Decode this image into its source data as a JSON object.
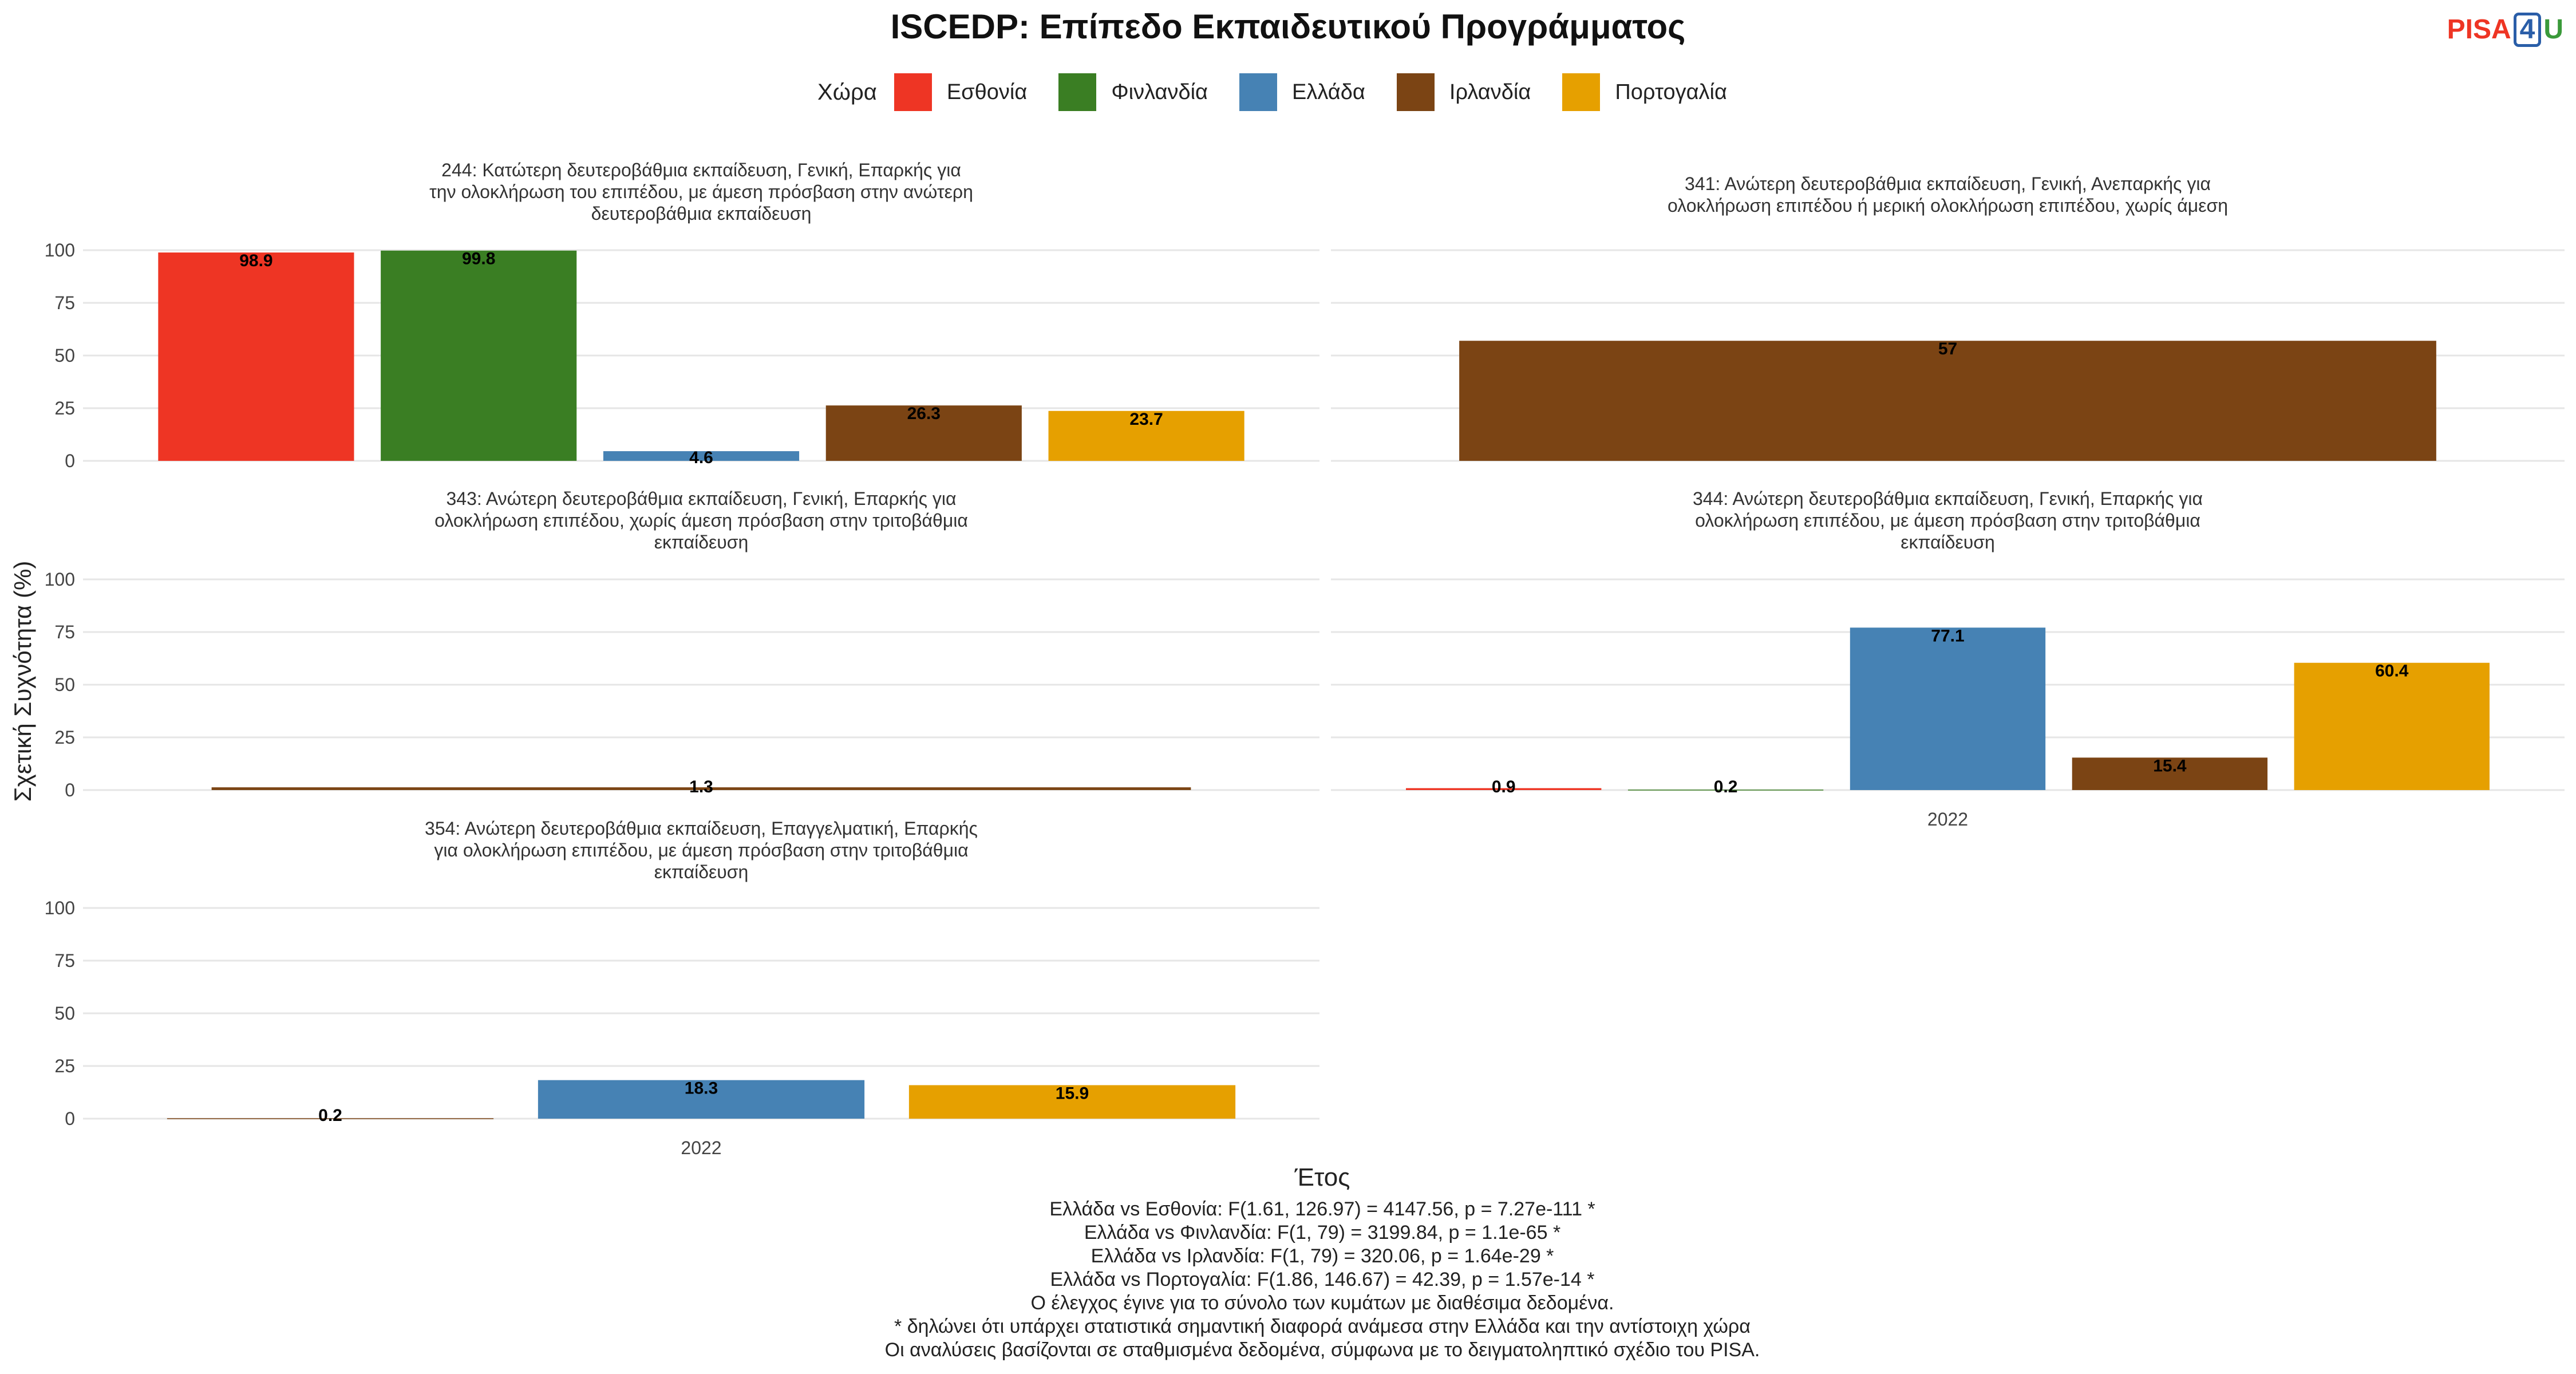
{
  "title": "ISCEDP: Επίπεδο Εκπαιδευτικού Προγράμματος",
  "logo": {
    "part1": "PISA",
    "part2": "4",
    "part3": "U"
  },
  "chart_data": {
    "type": "bar",
    "title": "ISCEDP: Επίπεδο Εκπαιδευτικού Προγράμματος",
    "xlabel": "Έτος",
    "ylabel": "Σχετική Συχνότητα (%)",
    "ylim": [
      0,
      100
    ],
    "yticks": [
      "0",
      "25",
      "50",
      "75",
      "100"
    ],
    "legend_title": "Χώρα",
    "legend_position": "top",
    "countries": [
      {
        "name": "Εσθονία",
        "color": "#ee3524"
      },
      {
        "name": "Φινλανδία",
        "color": "#3a7e23"
      },
      {
        "name": "Ελλάδα",
        "color": "#4682b4"
      },
      {
        "name": "Ιρλανδία",
        "color": "#7b4414"
      },
      {
        "name": "Πορτογαλία",
        "color": "#e6a000"
      }
    ],
    "facets": [
      {
        "title_lines": [
          "244: Κατώτερη δευτεροβάθμια εκπαίδευση, Γενική, Επαρκής για",
          "την ολοκλήρωση του επιπέδου, με άμεση πρόσβαση στην ανώτερη",
          "δευτεροβάθμια εκπαίδευση"
        ],
        "x_label": "",
        "bars": [
          {
            "country": "Εσθονία",
            "value": 98.9,
            "label": "98.9"
          },
          {
            "country": "Φινλανδία",
            "value": 99.8,
            "label": "99.8"
          },
          {
            "country": "Ελλάδα",
            "value": 4.6,
            "label": "4.6"
          },
          {
            "country": "Ιρλανδία",
            "value": 26.3,
            "label": "26.3"
          },
          {
            "country": "Πορτογαλία",
            "value": 23.7,
            "label": "23.7"
          }
        ]
      },
      {
        "title_lines": [
          "341: Ανώτερη δευτεροβάθμια εκπαίδευση, Γενική, Ανεπαρκής για",
          "ολοκλήρωση επιπέδου ή μερική ολοκλήρωση επιπέδου, χωρίς άμεση"
        ],
        "x_label": "",
        "bars": [
          {
            "country": "Ιρλανδία",
            "value": 57,
            "label": "57"
          }
        ]
      },
      {
        "title_lines": [
          "343: Ανώτερη δευτεροβάθμια εκπαίδευση, Γενική, Επαρκής για",
          "ολοκλήρωση επιπέδου, χωρίς άμεση πρόσβαση στην τριτοβάθμια",
          "εκπαίδευση"
        ],
        "x_label": "",
        "bars": [
          {
            "country": "Ιρλανδία",
            "value": 1.3,
            "label": "1.3"
          }
        ]
      },
      {
        "title_lines": [
          "344: Ανώτερη δευτεροβάθμια εκπαίδευση, Γενική, Επαρκής για",
          "ολοκλήρωση επιπέδου, με άμεση πρόσβαση στην τριτοβάθμια",
          "εκπαίδευση"
        ],
        "x_label": "2022",
        "bars": [
          {
            "country": "Εσθονία",
            "value": 0.9,
            "label": "0.9"
          },
          {
            "country": "Φινλανδία",
            "value": 0.2,
            "label": "0.2"
          },
          {
            "country": "Ελλάδα",
            "value": 77.1,
            "label": "77.1"
          },
          {
            "country": "Ιρλανδία",
            "value": 15.4,
            "label": "15.4"
          },
          {
            "country": "Πορτογαλία",
            "value": 60.4,
            "label": "60.4"
          }
        ]
      },
      {
        "title_lines": [
          "354: Ανώτερη δευτεροβάθμια εκπαίδευση, Επαγγελματική, Επαρκής",
          "για ολοκλήρωση επιπέδου, με άμεση πρόσβαση στην τριτοβάθμια",
          "εκπαίδευση"
        ],
        "x_label": "2022",
        "bars": [
          {
            "country": "Ιρλανδία",
            "value": 0.2,
            "label": "0.2"
          },
          {
            "country": "Ελλάδα",
            "value": 18.3,
            "label": "18.3"
          },
          {
            "country": "Πορτογαλία",
            "value": 15.9,
            "label": "15.9"
          }
        ]
      }
    ]
  },
  "caption_lines": [
    "Ελλάδα vs Εσθονία: F(1.61, 126.97) = 4147.56, p = 7.27e-111 *",
    "Ελλάδα vs Φινλανδία: F(1, 79) = 3199.84, p = 1.1e-65 *",
    "Ελλάδα vs Ιρλανδία: F(1, 79) = 320.06, p = 1.64e-29 *",
    "Ελλάδα vs Πορτογαλία: F(1.86, 146.67) = 42.39, p = 1.57e-14 *",
    "Ο έλεγχος έγινε για το σύνολο των κυμάτων με διαθέσιμα δεδομένα.",
    "* δηλώνει ότι υπάρχει στατιστικά σημαντική διαφορά ανάμεσα στην Ελλάδα και την αντίστοιχη χώρα",
    "Οι αναλύσεις βασίζονται σε σταθμισμένα δεδομένα, σύμφωνα με το δειγματοληπτικό σχέδιο του PISA."
  ]
}
